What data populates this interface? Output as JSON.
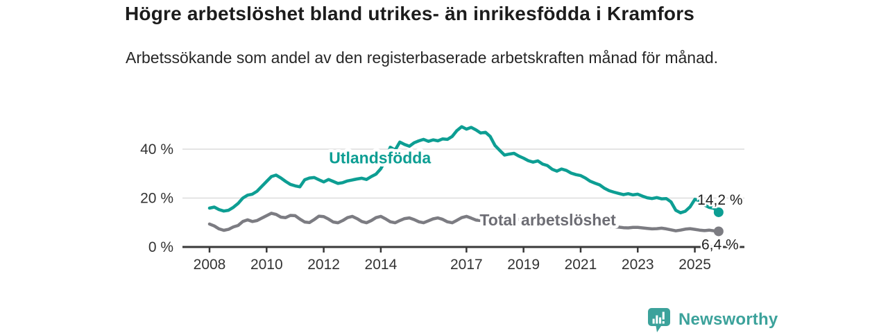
{
  "header": {
    "title": "Högre arbetslöshet bland utrikes- än inrikesfödda i Kramfors",
    "subtitle": "Arbetssökande som andel av den registerbaserade arbetskraften månad för månad."
  },
  "footer": {
    "brand": "Newsworthy",
    "logo_icon": "newsworthy-speech-bubble-bar-chart-icon"
  },
  "colors": {
    "foreign_born_line": "#0d9e93",
    "total_line": "#7c7c82",
    "total_label": "#6d6d74",
    "grid": "#dcdcdc",
    "axis": "#383838",
    "tick_text": "#333333",
    "value_text": "#1f1f1f",
    "brand": "#3ca29b",
    "background": "#ffffff"
  },
  "chart_data": {
    "type": "line",
    "title": "Högre arbetslöshet bland utrikes- än inrikesfödda i Kramfors",
    "subtitle": "Arbetssökande som andel av den registerbaserade arbetskraften månad för månad.",
    "unit": "%",
    "x_start": 2008.0,
    "x_step": 0.16667,
    "xlim": [
      2007.05,
      2026.2
    ],
    "ylim": [
      0,
      52
    ],
    "grid": true,
    "legend_position": "inline-labels",
    "y_ticks": [
      {
        "pct": 0,
        "label": "0 %"
      },
      {
        "pct": 20,
        "label": "20 %"
      },
      {
        "pct": 40,
        "label": "40 %"
      }
    ],
    "x_ticks": [
      {
        "year": 2008,
        "label": "2008"
      },
      {
        "year": 2010,
        "label": "2010"
      },
      {
        "year": 2012,
        "label": "2012"
      },
      {
        "year": 2014,
        "label": "2014"
      },
      {
        "year": 2017,
        "label": "2017"
      },
      {
        "year": 2019,
        "label": "2019"
      },
      {
        "year": 2021,
        "label": "2021"
      },
      {
        "year": 2023,
        "label": "2023"
      },
      {
        "year": 2025,
        "label": "2025"
      }
    ],
    "series": [
      {
        "name": "Utlandsfödda",
        "color": "#0d9e93",
        "label_color": "#0d9e93",
        "end_label": "14,2 %",
        "end_value": 14.2,
        "label_anchor": {
          "year": 2013.97,
          "pct_baseline": 34.2
        },
        "values": [
          15.9,
          16.3,
          15.3,
          14.7,
          15.0,
          16.2,
          17.8,
          20.0,
          21.2,
          21.6,
          22.8,
          24.8,
          26.8,
          28.8,
          29.4,
          28.2,
          26.8,
          25.6,
          25.0,
          24.6,
          27.5,
          28.2,
          28.4,
          27.5,
          26.6,
          27.6,
          26.8,
          26.0,
          26.3,
          27.0,
          27.4,
          27.8,
          28.1,
          27.6,
          28.8,
          29.8,
          32.0,
          35.5,
          40.8,
          39.6,
          42.9,
          41.9,
          41.2,
          42.6,
          43.4,
          44.0,
          43.2,
          43.8,
          43.4,
          44.2,
          44.0,
          45.2,
          47.6,
          49.2,
          48.2,
          48.9,
          47.9,
          46.6,
          46.9,
          45.2,
          41.5,
          39.5,
          37.6,
          38.0,
          38.3,
          37.2,
          36.3,
          35.3,
          34.7,
          35.2,
          33.9,
          33.3,
          31.8,
          31.0,
          31.9,
          31.3,
          30.2,
          29.6,
          29.2,
          28.2,
          26.9,
          26.1,
          25.4,
          24.0,
          23.0,
          22.4,
          21.9,
          21.4,
          21.8,
          21.3,
          21.6,
          20.8,
          20.1,
          19.8,
          20.2,
          19.7,
          19.8,
          18.4,
          15.0,
          14.0,
          14.6,
          16.4,
          19.5,
          18.9,
          17.2,
          16.2,
          15.8,
          14.2
        ]
      },
      {
        "name": "Total arbetslöshet",
        "color": "#7c7c82",
        "label_color": "#6d6d74",
        "end_label": "6,4 %",
        "end_value": 6.4,
        "label_anchor": {
          "year": 2019.85,
          "pct_baseline": 8.8
        },
        "values": [
          9.4,
          8.6,
          7.4,
          6.8,
          7.2,
          8.2,
          8.8,
          10.4,
          11.1,
          10.4,
          10.8,
          11.8,
          12.8,
          13.8,
          13.3,
          12.2,
          12.0,
          12.9,
          12.8,
          11.4,
          10.2,
          10.0,
          11.2,
          12.6,
          12.4,
          11.4,
          10.2,
          9.9,
          10.8,
          12.0,
          12.5,
          11.6,
          10.4,
          9.9,
          10.8,
          12.0,
          12.5,
          11.5,
          10.3,
          9.9,
          10.8,
          11.6,
          11.9,
          11.2,
          10.3,
          9.9,
          10.7,
          11.5,
          11.9,
          11.3,
          10.3,
          9.9,
          10.9,
          12.0,
          12.5,
          11.8,
          11.0,
          10.8,
          11.4,
          11.9,
          11.6,
          11.0,
          10.2,
          10.0,
          10.6,
          11.2,
          11.0,
          10.4,
          9.8,
          9.7,
          10.2,
          10.8,
          11.0,
          11.4,
          12.0,
          11.8,
          11.4,
          11.2,
          11.0,
          10.6,
          10.0,
          9.4,
          9.0,
          8.8,
          8.6,
          8.2,
          8.1,
          7.9,
          7.8,
          8.0,
          8.0,
          7.8,
          7.6,
          7.4,
          7.5,
          7.7,
          7.4,
          7.0,
          6.6,
          6.9,
          7.3,
          7.5,
          7.2,
          6.9,
          6.7,
          6.9,
          6.6,
          6.4
        ]
      }
    ]
  }
}
